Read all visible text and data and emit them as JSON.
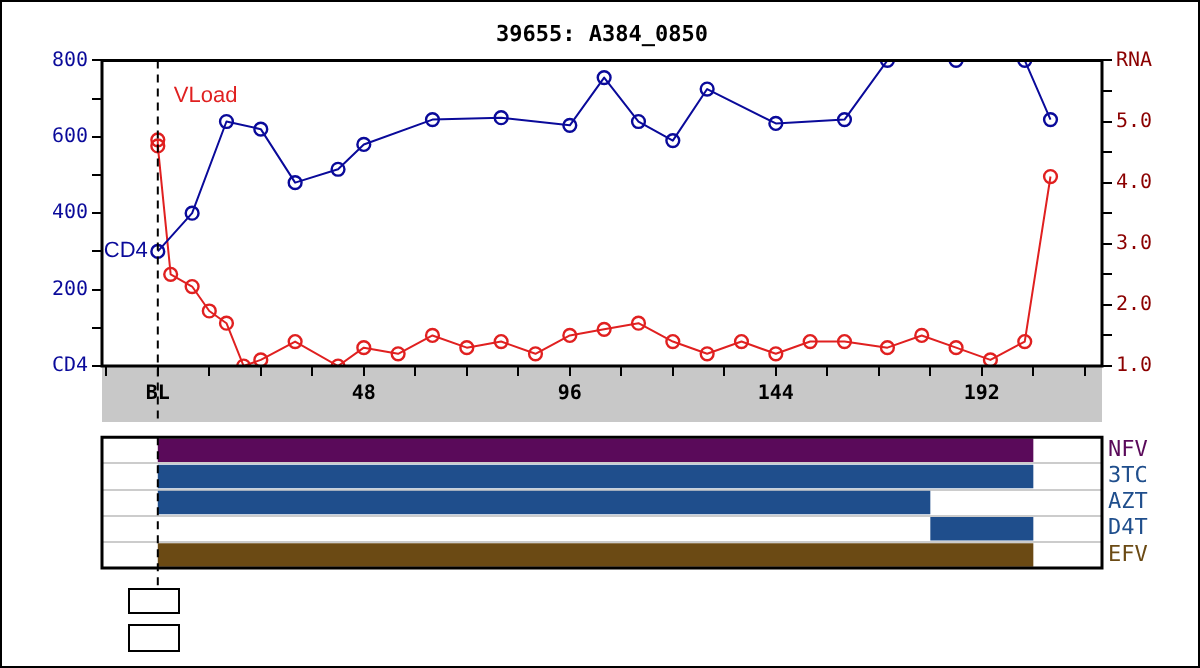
{
  "chart_data": [
    {
      "type": "line",
      "title": "39655: A384_0850",
      "marker": "circle",
      "line_style": "solid",
      "xlim": [
        -13,
        220
      ],
      "xticks": [
        {
          "value": -12,
          "label": null
        },
        {
          "value": 0,
          "label": "BL"
        },
        {
          "value": 12,
          "label": null
        },
        {
          "value": 24,
          "label": null
        },
        {
          "value": 36,
          "label": null
        },
        48,
        {
          "value": 60,
          "label": null
        },
        {
          "value": 72,
          "label": null
        },
        {
          "value": 84,
          "label": null
        },
        96,
        {
          "value": 108,
          "label": null
        },
        {
          "value": 120,
          "label": null
        },
        {
          "value": 132,
          "label": null
        },
        144,
        {
          "value": 156,
          "label": null
        },
        {
          "value": 168,
          "label": null
        },
        {
          "value": 180,
          "label": null
        },
        192,
        {
          "value": 204,
          "label": null
        },
        {
          "value": 216,
          "label": null
        }
      ],
      "ylim": [
        0,
        800
      ],
      "yticks": [
        {
          "value": 0,
          "label": "CD4"
        },
        {
          "value": 100,
          "label": null
        },
        200,
        {
          "value": 300,
          "label": null
        },
        400,
        {
          "value": 500,
          "label": null
        },
        600,
        {
          "value": 700,
          "label": null
        },
        800
      ],
      "y2lim": [
        1,
        6
      ],
      "y2ticks": [
        {
          "value": 1,
          "label": "1.0"
        },
        {
          "value": 1.5,
          "label": null
        },
        {
          "value": 2,
          "label": "2.0"
        },
        {
          "value": 2.5,
          "label": null
        },
        {
          "value": 3,
          "label": "3.0"
        },
        {
          "value": 3.5,
          "label": null
        },
        {
          "value": 4,
          "label": "4.0"
        },
        {
          "value": 4.5,
          "label": null
        },
        {
          "value": 5,
          "label": "5.0"
        },
        {
          "value": 5.5,
          "label": null
        },
        {
          "value": 6,
          "label": "RNA"
        }
      ],
      "ref_lines": [
        {
          "axis": "x",
          "value": 0,
          "line_style": "dashed",
          "color": "#000000"
        }
      ],
      "series": [
        {
          "name": "CD4",
          "color": "#0a0a9a",
          "axis": "y",
          "x": [
            0,
            8,
            16,
            24,
            32,
            42,
            48,
            64,
            80,
            96,
            104,
            112,
            120,
            128,
            144,
            160,
            170,
            186,
            202,
            208
          ],
          "values": [
            300,
            400,
            640,
            620,
            480,
            515,
            580,
            645,
            650,
            630,
            755,
            640,
            590,
            725,
            635,
            645,
            800,
            800,
            800,
            645
          ]
        },
        {
          "name": "VLoad",
          "color": "#e02020",
          "axis": "y2",
          "x": [
            0,
            0,
            3,
            8,
            12,
            16,
            20,
            24,
            32,
            42,
            48,
            56,
            64,
            72,
            80,
            88,
            96,
            104,
            112,
            120,
            128,
            136,
            144,
            152,
            160,
            170,
            178,
            186,
            194,
            202,
            208
          ],
          "values": [
            4.7,
            4.6,
            2.5,
            2.3,
            1.9,
            1.7,
            1.0,
            1.1,
            1.4,
            1.0,
            1.3,
            1.2,
            1.5,
            1.3,
            1.4,
            1.2,
            1.5,
            1.6,
            1.7,
            1.4,
            1.2,
            1.4,
            1.2,
            1.4,
            1.4,
            1.3,
            1.5,
            1.3,
            1.1,
            1.4,
            4.1
          ]
        }
      ]
    },
    {
      "type": "bar",
      "orientation": "horizontal",
      "tick_labels": "y",
      "grid": "y",
      "xlim": [
        -13,
        220
      ],
      "categories": [
        "NFV",
        "3TC",
        "AZT",
        "D4T",
        "EFV"
      ],
      "base": [
        0,
        0,
        0,
        180,
        0
      ],
      "values": [
        204,
        204,
        180,
        24,
        204
      ],
      "colors": [
        "#5a0a5a",
        "#1f4e8c",
        "#1f4e8c",
        "#1f4e8c",
        "#6b4a14"
      ],
      "ref_lines": [
        {
          "axis": "x",
          "value": 0,
          "line_style": "dashed",
          "color": "#000000"
        }
      ]
    }
  ]
}
